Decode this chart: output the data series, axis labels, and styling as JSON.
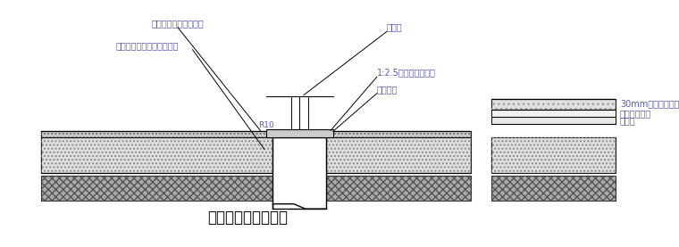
{
  "title": "桩顶防水做法示意图",
  "title_fontsize": 12,
  "bg_color": "#ffffff",
  "line_color": "#000000",
  "text_color": "#4a4a8a",
  "labels": {
    "top_left": "聚合物水泥砂浆保护层",
    "mid_left": "水泥基渗透结晶型防水涂料",
    "r10": "R10",
    "pile_steel": "桩钢筋",
    "protection": "1:2.5水泥砂浆保护层",
    "pile_cap": "桩顶帽覆",
    "right1": "30mm细石砼保护层",
    "right2": "丁基橡胶垫材",
    "right3": "砼垫层"
  }
}
